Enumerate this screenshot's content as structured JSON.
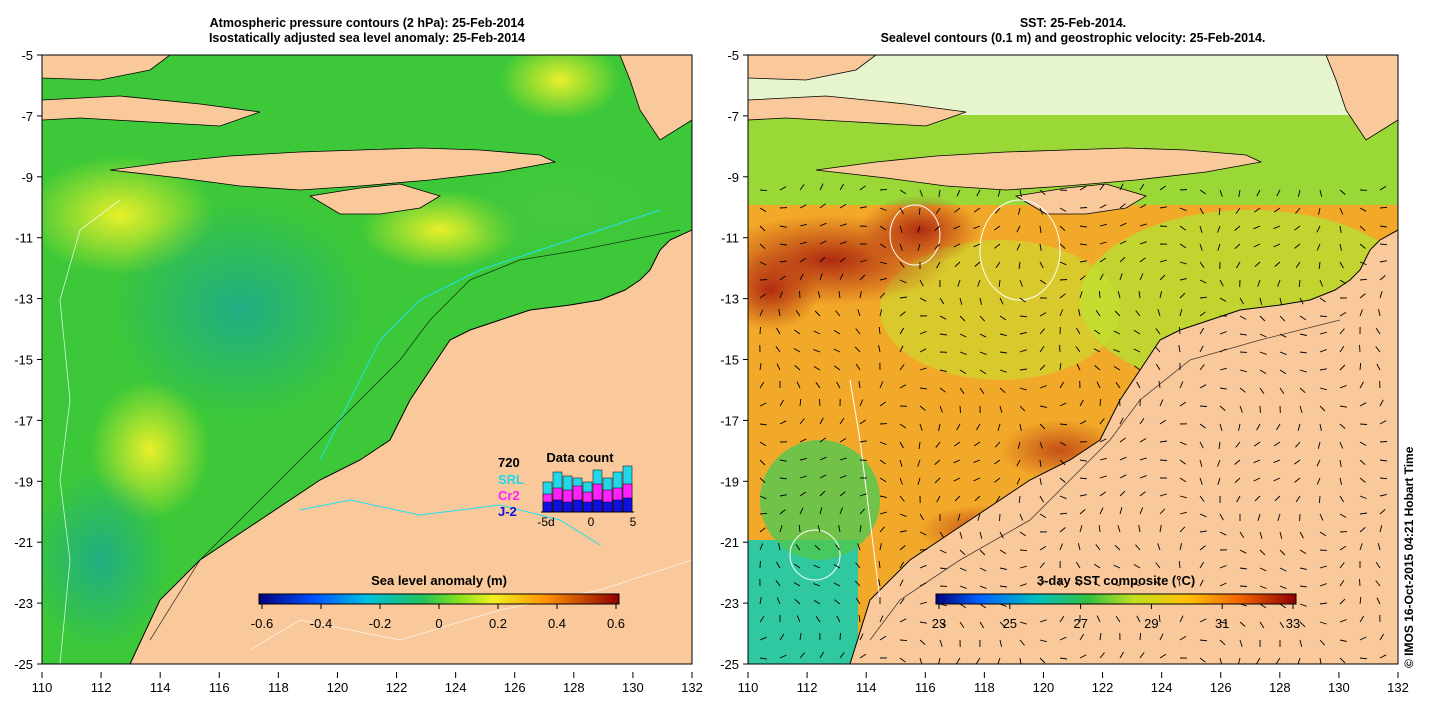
{
  "left_panel": {
    "title_line1": "Atmospheric pressure contours (2 hPa): 25-Feb-2014",
    "title_line2": "Isostatically adjusted sea level anomaly: 25-Feb-2014",
    "colorbar_label": "Sea level anomaly (m)",
    "colorbar_ticks": [
      "-0.6",
      "-0.4",
      "-0.2",
      "0",
      "0.2",
      "0.4",
      "0.6"
    ],
    "data_count": {
      "title": "Data count",
      "max_label": "720",
      "legend": [
        "SRL",
        "Cr2",
        "J-2"
      ],
      "legend_colors": [
        "#22d8e8",
        "#ff22ff",
        "#1010e0"
      ],
      "x_ticks": [
        "-5d",
        "0",
        "5"
      ]
    }
  },
  "right_panel": {
    "title_line1": "SST: 25-Feb-2014.",
    "title_line2": "Sealevel contours (0.1 m) and geostrophic velocity: 25-Feb-2014.",
    "colorbar_label": "3-day SST composite (°C)",
    "colorbar_ticks": [
      "23",
      "25",
      "27",
      "29",
      "31",
      "33"
    ]
  },
  "axes": {
    "lat_labels": [
      "-5",
      "-7",
      "-9",
      "-11",
      "-13",
      "-15",
      "-17",
      "-19",
      "-21",
      "-23",
      "-25"
    ],
    "lon_labels": [
      "110",
      "112",
      "114",
      "116",
      "118",
      "120",
      "122",
      "124",
      "126",
      "128",
      "130",
      "132"
    ]
  },
  "credit": "© IMOS 16-Oct-2015 04:21 Hobart Time",
  "colors": {
    "land": "#f9c89b",
    "ocean_anomaly": "#2ec83a",
    "ocean_sst": "#f0a020"
  }
}
